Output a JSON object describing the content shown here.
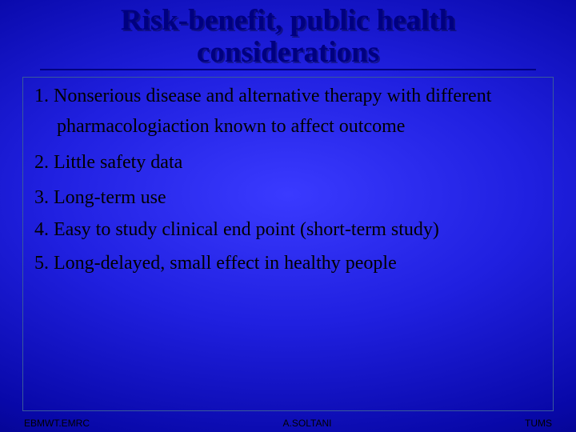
{
  "title_line1": "Risk-benefit, public health",
  "title_line2": "considerations",
  "items": [
    {
      "num": "1.",
      "text": "Nonserious disease and alternative therapy with different pharmacologiaction known to affect outcome"
    },
    {
      "num": "2.",
      "text": "Little safety data"
    },
    {
      "num": "3.",
      "text": "Long-term use"
    },
    {
      "num": "4.",
      "text": "Easy to study clinical end point (short-term study)"
    },
    {
      "num": "5.",
      "text": "Long-delayed, small effect in healthy people"
    }
  ],
  "footer": {
    "left": "EBMWT.EMRC",
    "center": "A.SOLTANI",
    "right": "TUMS"
  },
  "colors": {
    "title_color": "#000080",
    "text_color": "#000000",
    "bg_center": "#3a3aff",
    "bg_edge": "#000060",
    "box_border": "#3a5a9a"
  }
}
